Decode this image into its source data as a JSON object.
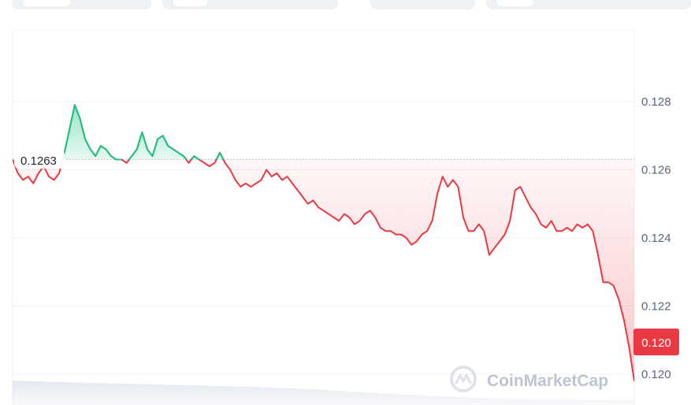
{
  "tabs": [
    {
      "name": "tab-1"
    },
    {
      "name": "tab-2"
    },
    {
      "name": "tab-3"
    },
    {
      "name": "tab-4"
    }
  ],
  "watermark": {
    "text": "CoinMarketCap",
    "icon": "coinmarketcap-logo-icon"
  },
  "colors": {
    "up": "#16c784",
    "down": "#ea3943",
    "grid": "#eff2f5",
    "axis_text": "#58667e",
    "reference_line": "#a6b0c3"
  },
  "chart_data": {
    "type": "line",
    "title": "",
    "xlabel": "",
    "ylabel": "",
    "ylim": [
      0.1191,
      0.1301
    ],
    "y_ticks": [
      {
        "value": 0.128,
        "label": "0.128"
      },
      {
        "value": 0.126,
        "label": "0.126"
      },
      {
        "value": 0.124,
        "label": "0.124"
      },
      {
        "value": 0.122,
        "label": "0.122"
      },
      {
        "value": 0.12,
        "label": "0.120"
      }
    ],
    "reference": {
      "value": 0.1263,
      "label": "0.1263"
    },
    "current": {
      "value": 0.1198,
      "label": "0.120"
    },
    "grid": true,
    "series": [
      {
        "values": [
          0.1263,
          0.1259,
          0.1257,
          0.1258,
          0.1256,
          0.1259,
          0.1261,
          0.1258,
          0.1257,
          0.1259,
          0.1265,
          0.1272,
          0.1279,
          0.1275,
          0.1269,
          0.1266,
          0.1264,
          0.1267,
          0.1266,
          0.1264,
          0.1263,
          0.1263,
          0.1262,
          0.1264,
          0.1266,
          0.1271,
          0.1266,
          0.1264,
          0.1269,
          0.127,
          0.1267,
          0.1266,
          0.1265,
          0.1264,
          0.1262,
          0.1264,
          0.1263,
          0.1262,
          0.1261,
          0.1262,
          0.1265,
          0.1262,
          0.126,
          0.1257,
          0.1255,
          0.1256,
          0.1255,
          0.1256,
          0.1257,
          0.126,
          0.1258,
          0.1259,
          0.1257,
          0.1258,
          0.1256,
          0.1254,
          0.1252,
          0.125,
          0.1251,
          0.1249,
          0.1248,
          0.1247,
          0.1246,
          0.1245,
          0.1247,
          0.1246,
          0.1244,
          0.1245,
          0.1247,
          0.1248,
          0.1246,
          0.1243,
          0.1242,
          0.1242,
          0.1241,
          0.1241,
          0.124,
          0.1238,
          0.1239,
          0.1241,
          0.1242,
          0.1245,
          0.1253,
          0.1258,
          0.1255,
          0.1257,
          0.1255,
          0.1246,
          0.1242,
          0.1242,
          0.1244,
          0.1242,
          0.1235,
          0.1237,
          0.1239,
          0.1241,
          0.1245,
          0.1254,
          0.1255,
          0.1252,
          0.1249,
          0.1247,
          0.1244,
          0.1243,
          0.1245,
          0.1242,
          0.1242,
          0.1243,
          0.1242,
          0.1244,
          0.1243,
          0.1244,
          0.1242,
          0.1235,
          0.1227,
          0.1227,
          0.1226,
          0.1222,
          0.1216,
          0.1208,
          0.1198
        ]
      }
    ]
  }
}
